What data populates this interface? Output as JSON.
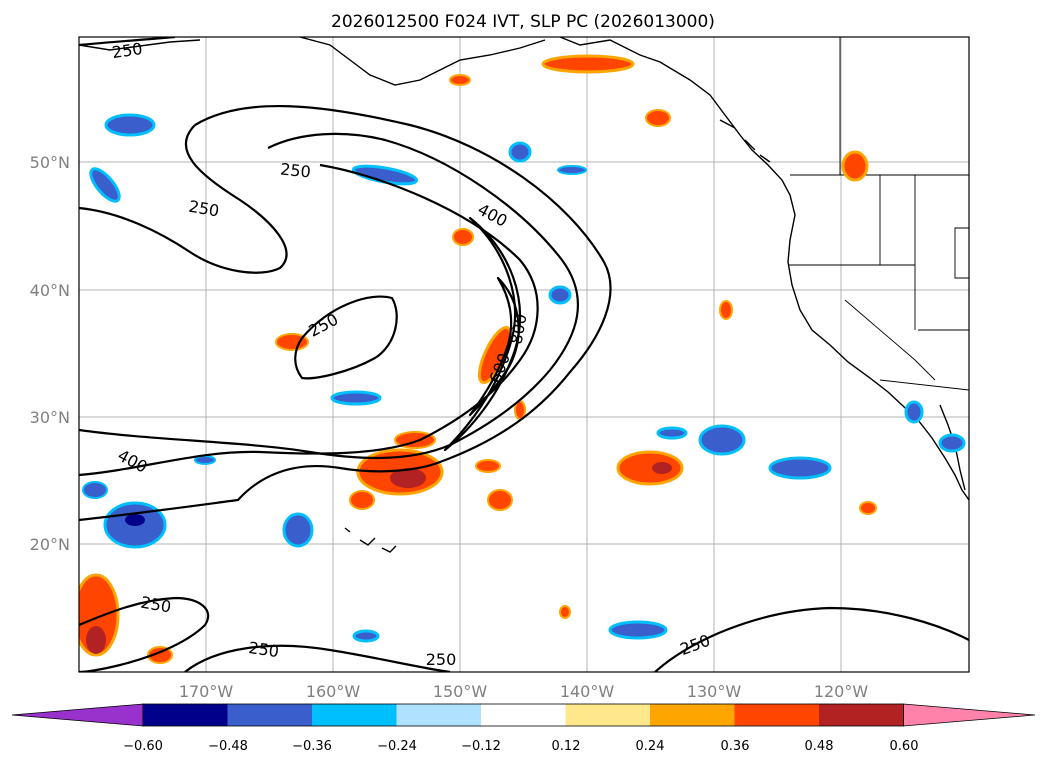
{
  "title": "2026012500 F024 IVT, SLP PC (2026013000)",
  "lat_labels": [
    "50°N",
    "40°N",
    "30°N",
    "20°N"
  ],
  "lon_labels": [
    "170°W",
    "160°W",
    "150°W",
    "140°W",
    "130°W",
    "120°W"
  ],
  "contour_labels": [
    "250",
    "250",
    "250",
    "250",
    "250",
    "250",
    "250",
    "400",
    "400",
    "600",
    "800"
  ],
  "colorbar": {
    "ticks": [
      "−0.60",
      "−0.48",
      "−0.36",
      "−0.24",
      "−0.12",
      "0.12",
      "0.24",
      "0.36",
      "0.48",
      "0.60"
    ],
    "colors": [
      "#9932cc",
      "#00008b",
      "#3a5fcd",
      "#00bfff",
      "#b0e2ff",
      "#ffffff",
      "#ffe88c",
      "#ffa500",
      "#ff4500",
      "#b22222",
      "#ff82ab"
    ]
  },
  "colors": {
    "land": "#ffffff",
    "ocean": "#ffffff",
    "gridline": "#b3b3b3",
    "axis_label": "#808080"
  }
}
